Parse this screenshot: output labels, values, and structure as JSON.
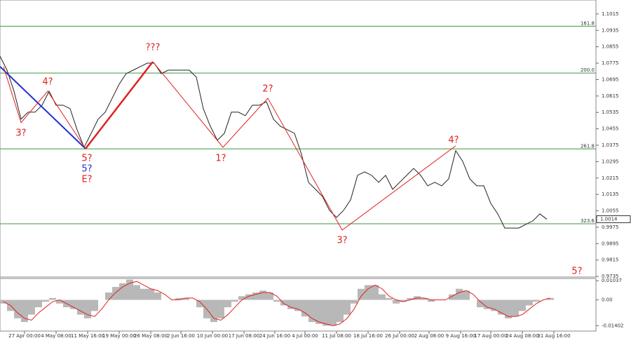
{
  "chart_data": [
    {
      "type": "line",
      "color": "#222",
      "x": [
        0,
        10,
        20,
        30,
        40,
        50,
        60,
        70,
        80,
        90,
        100,
        110,
        120,
        130,
        140,
        150,
        160,
        170,
        180,
        190,
        200,
        210,
        220,
        230,
        240,
        250,
        260,
        270,
        280,
        290,
        300,
        310,
        320,
        330,
        340,
        350,
        360,
        370,
        380,
        390,
        400,
        410,
        420,
        430,
        440,
        450,
        460,
        470,
        480,
        490,
        500,
        510,
        520,
        530,
        540,
        550,
        560,
        570,
        580,
        590,
        600,
        610,
        620,
        630,
        640,
        650,
        660,
        670,
        680,
        690,
        700,
        710,
        720,
        730,
        740,
        750,
        760,
        770,
        780
      ],
      "values": [
        1.0809,
        1.0741,
        1.0638,
        1.0502,
        1.0536,
        1.0536,
        1.057,
        1.0638,
        1.057,
        1.057,
        1.0553,
        1.045,
        1.0365,
        1.0433,
        1.0502,
        1.0536,
        1.0604,
        1.0673,
        1.0724,
        1.0741,
        1.0758,
        1.0775,
        1.0775,
        1.0724,
        1.0741,
        1.0741,
        1.0741,
        1.0741,
        1.0707,
        1.0553,
        1.0467,
        1.0399,
        1.0433,
        1.0536,
        1.0536,
        1.0519,
        1.057,
        1.057,
        1.0587,
        1.0502,
        1.0467,
        1.045,
        1.0433,
        1.0331,
        1.0194,
        1.016,
        1.0125,
        1.0057,
        1.0023,
        1.0057,
        1.0108,
        1.0228,
        1.0245,
        1.0228,
        1.0194,
        1.0228,
        1.016,
        1.0194,
        1.0228,
        1.0262,
        1.0228,
        1.0177,
        1.0194,
        1.0177,
        1.0211,
        1.0348,
        1.0296,
        1.0211,
        1.0177,
        1.0177,
        1.0091,
        1.004,
        0.9971,
        0.9971,
        0.9971,
        0.9989,
        1.0006,
        1.004,
        1.0014
      ],
      "xlim": [
        0,
        850
      ],
      "ylim": [
        0.9732,
        1.1083
      ],
      "yticks": [
        1.1015,
        1.0935,
        1.0855,
        1.0775,
        1.0695,
        1.0615,
        1.0535,
        1.0455,
        1.0375,
        1.0295,
        1.0215,
        1.0135,
        1.0055,
        0.9975,
        0.9895,
        0.9815,
        0.9735
      ],
      "levels": [
        {
          "label": "161.8",
          "value": 1.0955,
          "color": "#3a9a3a"
        },
        {
          "label": "200.0",
          "value": 1.0727,
          "color": "#3a9a3a"
        },
        {
          "label": "261.8",
          "value": 1.0357,
          "color": "#3a9a3a"
        },
        {
          "label": "323.6",
          "value": 0.9992,
          "color": "#3a9a3a"
        }
      ],
      "waves": [
        {
          "color": "#2233cc",
          "width": 2,
          "x": [
            0,
            122
          ],
          "y": [
            1.0758,
            1.0358
          ]
        },
        {
          "color": "#e02020",
          "width": 1,
          "x": [
            5,
            30,
            68,
            122
          ],
          "y": [
            1.0758,
            1.0485,
            1.0638,
            1.0358
          ]
        },
        {
          "color": "#e02020",
          "width": 2.5,
          "x": [
            122,
            218
          ],
          "y": [
            1.0358,
            1.0782
          ]
        },
        {
          "color": "#e02020",
          "width": 1,
          "x": [
            218,
            318,
            382,
            488,
            650
          ],
          "y": [
            1.0782,
            1.0365,
            1.0604,
            0.9961,
            1.0372
          ]
        }
      ],
      "annotations": [
        {
          "label": "3?",
          "x": 30,
          "y": 1.0433,
          "color": "#e02020"
        },
        {
          "label": "4?",
          "x": 68,
          "y": 1.0683,
          "color": "#e02020"
        },
        {
          "label": "5?",
          "x": 124,
          "y": 1.031,
          "color": "#e02020"
        },
        {
          "label": "5?",
          "x": 124,
          "y": 1.0259,
          "color": "#2233cc"
        },
        {
          "label": "E?",
          "x": 124,
          "y": 1.0207,
          "color": "#e02020"
        },
        {
          "label": "???",
          "x": 218,
          "y": 1.085,
          "color": "#e02020"
        },
        {
          "label": "1?",
          "x": 315,
          "y": 1.031,
          "color": "#e02020"
        },
        {
          "label": "2?",
          "x": 382,
          "y": 1.0649,
          "color": "#e02020"
        },
        {
          "label": "3?",
          "x": 488,
          "y": 0.991,
          "color": "#e02020"
        },
        {
          "label": "4?",
          "x": 647,
          "y": 1.0399,
          "color": "#e02020"
        },
        {
          "label": "5?",
          "x": 823,
          "y": 0.9759,
          "color": "#e02020"
        }
      ],
      "xticks": [
        {
          "value": 35,
          "label": "27 Apr 00:00"
        },
        {
          "value": 80,
          "label": "4 May 08:00"
        },
        {
          "value": 125,
          "label": "11 May 16:00"
        },
        {
          "value": 170,
          "label": "19 May 00:00"
        },
        {
          "value": 215,
          "label": "26 May 08:00"
        },
        {
          "value": 258,
          "label": "2 Jun 16:00"
        },
        {
          "value": 303,
          "label": "10 Jun 00:00"
        },
        {
          "value": 348,
          "label": "17 Jun 08:00"
        },
        {
          "value": 392,
          "label": "24 Jun 16:00"
        },
        {
          "value": 435,
          "label": "4 Jul 00:00"
        },
        {
          "value": 480,
          "label": "11 Jul 08:00"
        },
        {
          "value": 525,
          "label": "18 Jul 16:00"
        },
        {
          "value": 570,
          "label": "26 Jul 00:00"
        },
        {
          "value": 612,
          "label": "2 Aug 08:00"
        },
        {
          "value": 657,
          "label": "9 Aug 16:00"
        },
        {
          "value": 700,
          "label": "17 Aug 00:00"
        },
        {
          "value": 745,
          "label": "24 Aug 08:00"
        },
        {
          "value": 790,
          "label": "31 Aug 16:00"
        }
      ]
    },
    {
      "type": "oscillator",
      "x": [
        0,
        10,
        20,
        30,
        40,
        50,
        60,
        70,
        80,
        90,
        100,
        110,
        120,
        130,
        140,
        150,
        160,
        170,
        180,
        190,
        200,
        210,
        220,
        230,
        240,
        250,
        260,
        270,
        280,
        290,
        300,
        310,
        320,
        330,
        340,
        350,
        360,
        370,
        380,
        390,
        400,
        410,
        420,
        430,
        440,
        450,
        460,
        470,
        480,
        490,
        500,
        510,
        520,
        530,
        540,
        550,
        560,
        570,
        580,
        590,
        600,
        610,
        620,
        630,
        640,
        650,
        660,
        670,
        680,
        690,
        700,
        710,
        720,
        730,
        740,
        750,
        760,
        770,
        780
      ],
      "series": [
        {
          "color": "#b8b8b8",
          "values": [
            -0.002,
            -0.006,
            -0.01,
            -0.012,
            -0.008,
            -0.004,
            -0.001,
            0.001,
            -0.002,
            -0.004,
            -0.005,
            -0.008,
            -0.01,
            -0.006,
            0,
            0.004,
            0.007,
            0.009,
            0.011,
            0.008,
            0.006,
            0.006,
            0.004,
            0,
            0,
            0.001,
            0.001,
            0,
            -0.004,
            -0.01,
            -0.012,
            -0.01,
            -0.004,
            -0.001,
            0.002,
            0.003,
            0.004,
            0.005,
            0.004,
            -0.001,
            -0.003,
            -0.005,
            -0.006,
            -0.009,
            -0.012,
            -0.013,
            -0.014,
            -0.014,
            -0.012,
            -0.008,
            -0.002,
            0.006,
            0.008,
            0.008,
            0.003,
            0.001,
            -0.002,
            -0.001,
            0.001,
            0.002,
            0.001,
            -0.001,
            0,
            0,
            0.003,
            0.006,
            0.005,
            0,
            -0.004,
            -0.005,
            -0.006,
            -0.008,
            -0.01,
            -0.009,
            -0.006,
            -0.003,
            -0.001,
            0,
            0.001
          ]
        },
        {
          "color": "#e02020",
          "values": [
            -0.001,
            -0.003,
            -0.007,
            -0.01,
            -0.011,
            -0.007,
            -0.004,
            -0.001,
            0,
            -0.002,
            -0.004,
            -0.006,
            -0.008,
            -0.009,
            -0.005,
            0,
            0.004,
            0.007,
            0.009,
            0.01,
            0.008,
            0.006,
            0.005,
            0.003,
            0,
            0,
            0.001,
            0.001,
            -0.001,
            -0.005,
            -0.01,
            -0.011,
            -0.008,
            -0.004,
            0,
            0.002,
            0.003,
            0.004,
            0.004,
            0.002,
            -0.002,
            -0.004,
            -0.005,
            -0.007,
            -0.01,
            -0.012,
            -0.013,
            -0.014,
            -0.013,
            -0.01,
            -0.005,
            0.002,
            0.006,
            0.008,
            0.006,
            0.002,
            0,
            -0.001,
            0,
            0.001,
            0.001,
            0,
            0,
            0,
            0.002,
            0.004,
            0.005,
            0.003,
            -0.001,
            -0.004,
            -0.005,
            -0.007,
            -0.009,
            -0.009,
            -0.008,
            -0.005,
            -0.002,
            0,
            0.001
          ]
        }
      ],
      "xlim": [
        0,
        850
      ],
      "ylim": [
        -0.0169,
        0.0116
      ],
      "yticks": [
        0.01037,
        {
          "value": 0,
          "label": "0.00"
        },
        -0.01402
      ]
    }
  ]
}
